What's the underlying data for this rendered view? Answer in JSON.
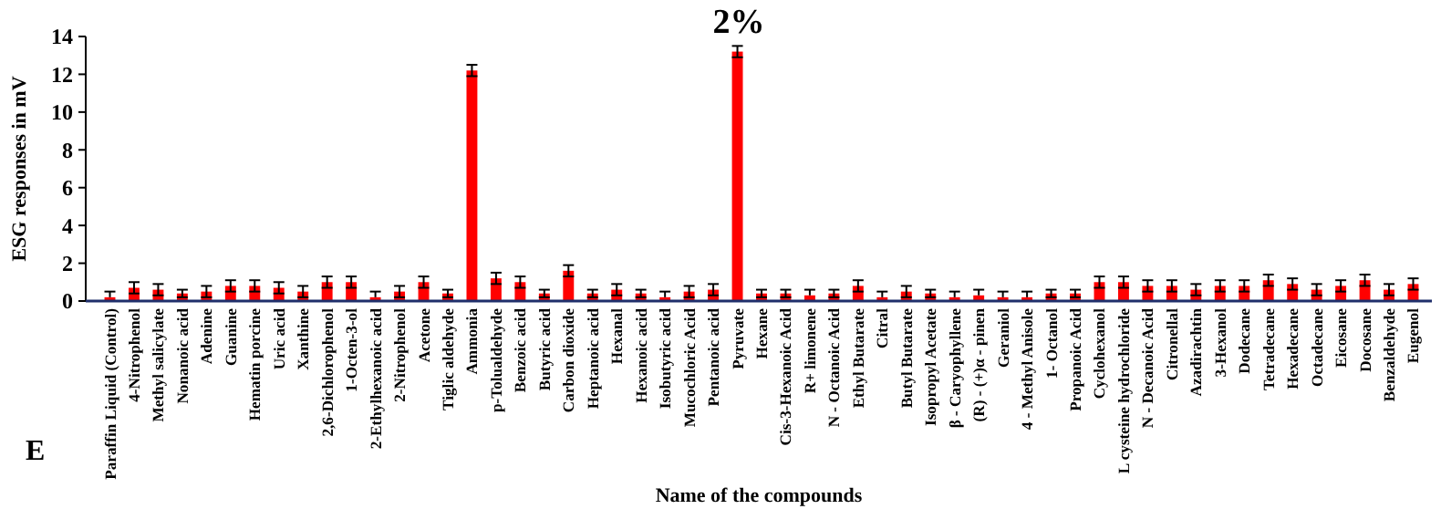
{
  "chart_data": {
    "type": "bar",
    "title": "2%",
    "xlabel": "Name of the compounds",
    "ylabel": "ESG responses in mV",
    "annotations": [
      "E"
    ],
    "categories": [
      "Paraffin Liquid (Control)",
      "4-Nitrophenol",
      "Methyl salicylate",
      "Nonanoic acid",
      "Adenine",
      "Guanine",
      "Hematin porcine",
      "Uric acid",
      "Xanthine",
      "2,6-Dichlorophenol",
      "1-Octen-3-ol",
      "2-Ethylhexanoic acid",
      "2-Nitrophenol",
      "Acetone",
      "Tiglic aldehyde",
      "Ammonia",
      "p-Tolualdehyde",
      "Benzoic acid",
      "Butyric acid",
      "Carbon dioxide",
      "Heptanoic acid",
      "Hexanal",
      "Hexanoic acid",
      "Isobutyric acid",
      "Mucochloric Acid",
      "Pentanoic acid",
      "Pyruvate",
      "Hexane",
      "Cis-3-Hexanoic Acid",
      "R+ limonene",
      "N - Octanoic Acid",
      "Ethyl Butarate",
      "Citral",
      "Butyl Butarate",
      "Isopropyl Acetate",
      "β - Caryophyllene",
      "(R) - (+)α - pinen",
      "Geraniol",
      "4 - Methyl Anisole",
      "1- Octanol",
      "Propanoic Acid",
      "Cyclohexanol",
      "L cysteine hydrochloride",
      "N - Decanoic Acid",
      "Citronellal",
      "Azadirachtin",
      "3-Hexanol",
      "Dodecane",
      "Tetradecane",
      "Hexadecane",
      "Octadecane",
      "Eicosane",
      "Docosane",
      "Benzaldehyde",
      "Eugenol"
    ],
    "values": [
      0.2,
      0.7,
      0.6,
      0.4,
      0.5,
      0.8,
      0.8,
      0.7,
      0.5,
      1.0,
      1.0,
      0.2,
      0.5,
      1.0,
      0.4,
      12.2,
      1.2,
      1.0,
      0.4,
      1.6,
      0.4,
      0.6,
      0.4,
      0.2,
      0.5,
      0.6,
      13.2,
      0.4,
      0.4,
      0.3,
      0.4,
      0.8,
      0.2,
      0.5,
      0.4,
      0.2,
      0.3,
      0.2,
      0.2,
      0.4,
      0.4,
      1.0,
      1.0,
      0.8,
      0.8,
      0.6,
      0.8,
      0.8,
      1.1,
      0.9,
      0.6,
      0.8,
      1.1,
      0.6,
      0.9
    ],
    "errors": [
      [
        0.2,
        0.5
      ],
      0.3,
      0.3,
      0.2,
      0.3,
      0.3,
      0.3,
      0.3,
      0.3,
      0.3,
      0.3,
      [
        0.2,
        0.5
      ],
      0.3,
      0.3,
      0.2,
      0.3,
      0.3,
      0.3,
      0.2,
      0.3,
      0.2,
      0.3,
      0.2,
      [
        0.2,
        0.5
      ],
      0.3,
      0.3,
      0.3,
      0.2,
      0.2,
      [
        0.3,
        0.6
      ],
      0.2,
      0.3,
      [
        0.2,
        0.5
      ],
      0.3,
      0.2,
      [
        0.2,
        0.5
      ],
      [
        0.3,
        0.6
      ],
      [
        0.2,
        0.5
      ],
      [
        0.2,
        0.5
      ],
      0.2,
      0.2,
      0.3,
      0.3,
      0.3,
      0.3,
      0.3,
      0.3,
      0.3,
      0.3,
      0.3,
      0.3,
      0.3,
      0.3,
      0.3,
      0.3
    ],
    "color": "#ff0000",
    "ylim": [
      0,
      14
    ],
    "yticks": [
      0,
      2,
      4,
      6,
      8,
      10,
      12,
      14
    ],
    "grid": false
  }
}
